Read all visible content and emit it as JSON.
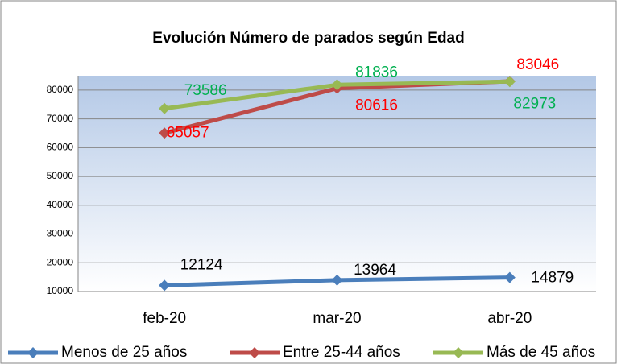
{
  "chart_data": {
    "type": "line",
    "title": "Evolución Número de parados según Edad",
    "categories": [
      "feb-20",
      "mar-20",
      "abr-20"
    ],
    "series": [
      {
        "name": "Menos de 25 años",
        "color": "#4a7ebb",
        "label_color": "#000000",
        "values": [
          12124,
          13964,
          14879
        ]
      },
      {
        "name": "Entre 25-44 años",
        "color": "#be4b48",
        "label_color": "#ff0000",
        "values": [
          65057,
          80616,
          83046
        ]
      },
      {
        "name": "Más de 45 años",
        "color": "#98b954",
        "label_color": "#00b050",
        "values": [
          73586,
          81836,
          82973
        ]
      }
    ],
    "ylim": [
      10000,
      85000
    ],
    "yticks": [
      10000,
      20000,
      30000,
      40000,
      50000,
      60000,
      70000,
      80000
    ],
    "grid": true,
    "legend": "bottom"
  }
}
